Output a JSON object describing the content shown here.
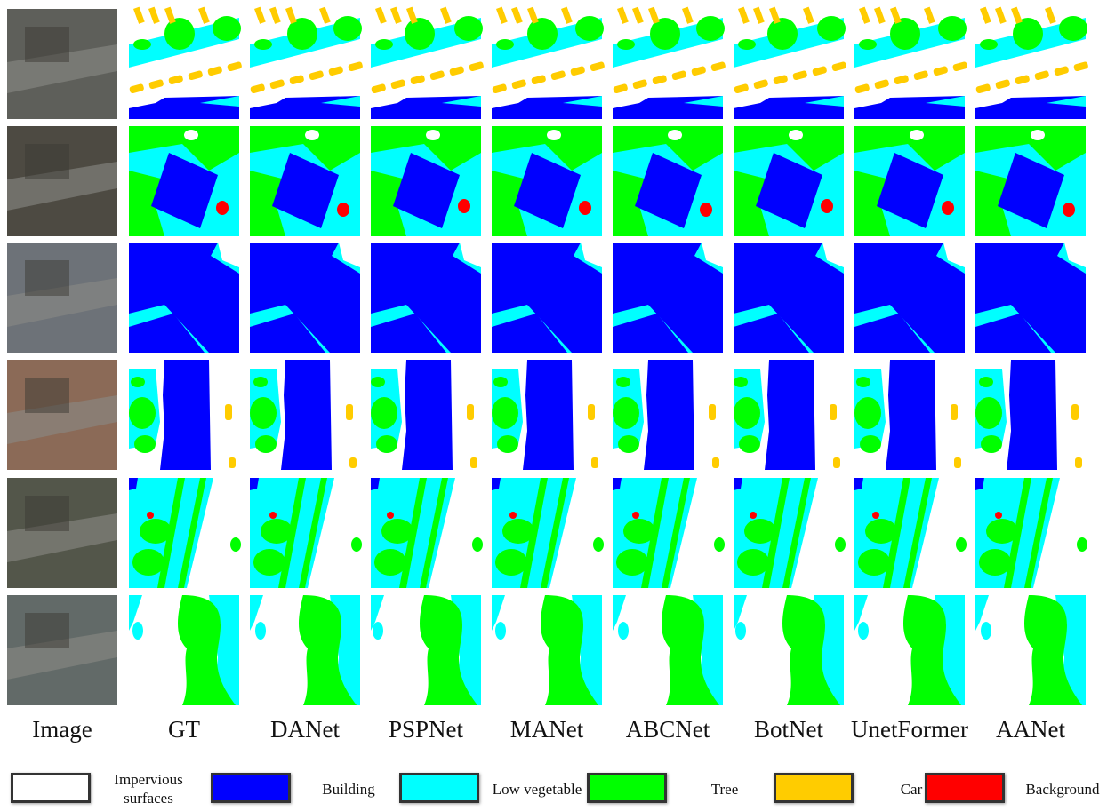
{
  "columns": [
    "Image",
    "GT",
    "DANet",
    "PSPNet",
    "MANet",
    "ABCNet",
    "BotNet",
    "UnetFormer",
    "AANet"
  ],
  "legend": [
    {
      "label": "Impervious surfaces",
      "color": "#ffffff"
    },
    {
      "label": "Building",
      "color": "#0000ff"
    },
    {
      "label": "Low vegetable",
      "color": "#00ffff"
    },
    {
      "label": "Tree",
      "color": "#00ff00"
    },
    {
      "label": "Car",
      "color": "#ffcc00"
    },
    {
      "label": "Background",
      "color": "#ff0000"
    }
  ]
}
